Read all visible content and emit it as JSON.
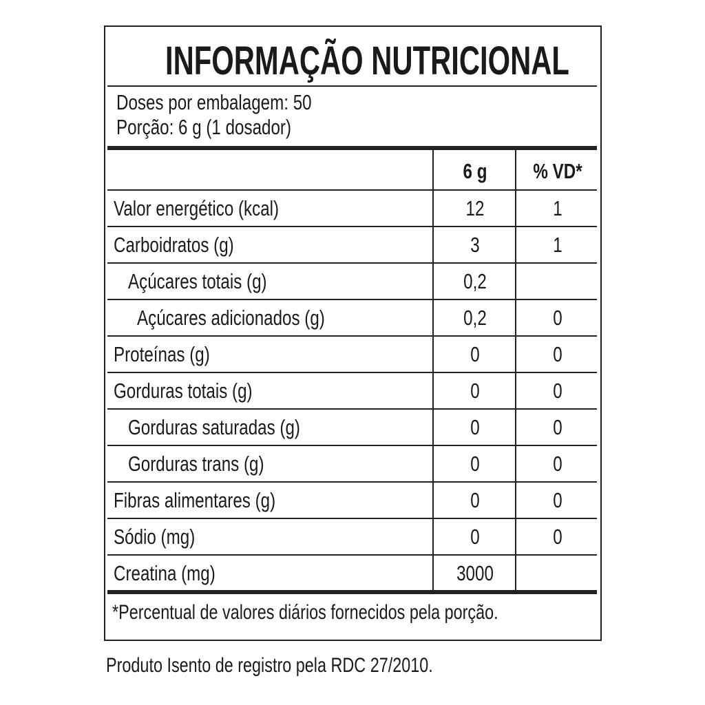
{
  "title": "INFORMAÇÃO NUTRICIONAL",
  "doses": "Doses por embalagem: 50",
  "porcao": "Porção: 6 g (1 dosador)",
  "header": {
    "col1": "6 g",
    "col2": "% VD*"
  },
  "rows": [
    {
      "label": "Valor energético (kcal)",
      "amount": "12",
      "vd": "1"
    },
    {
      "label": "Carboidratos (g)",
      "amount": "3",
      "vd": "1"
    },
    {
      "label": "Açúcares totais (g)",
      "amount": "0,2",
      "vd": ""
    },
    {
      "label": "Açúcares adicionados (g)",
      "amount": "0,2",
      "vd": "0"
    },
    {
      "label": "Proteínas (g)",
      "amount": "0",
      "vd": "0"
    },
    {
      "label": "Gorduras totais (g)",
      "amount": "0",
      "vd": "0"
    },
    {
      "label": "Gorduras saturadas (g)",
      "amount": "0",
      "vd": "0"
    },
    {
      "label": "Gorduras trans (g)",
      "amount": "0",
      "vd": "0"
    },
    {
      "label": "Fibras alimentares (g)",
      "amount": "0",
      "vd": "0"
    },
    {
      "label": "Sódio (mg)",
      "amount": "0",
      "vd": "0"
    },
    {
      "label": "Creatina (mg)",
      "amount": "3000",
      "vd": ""
    }
  ],
  "footnote": "*Percentual de valores diários fornecidos pela porção.",
  "registro": "Produto Isento de registro pela RDC 27/2010."
}
